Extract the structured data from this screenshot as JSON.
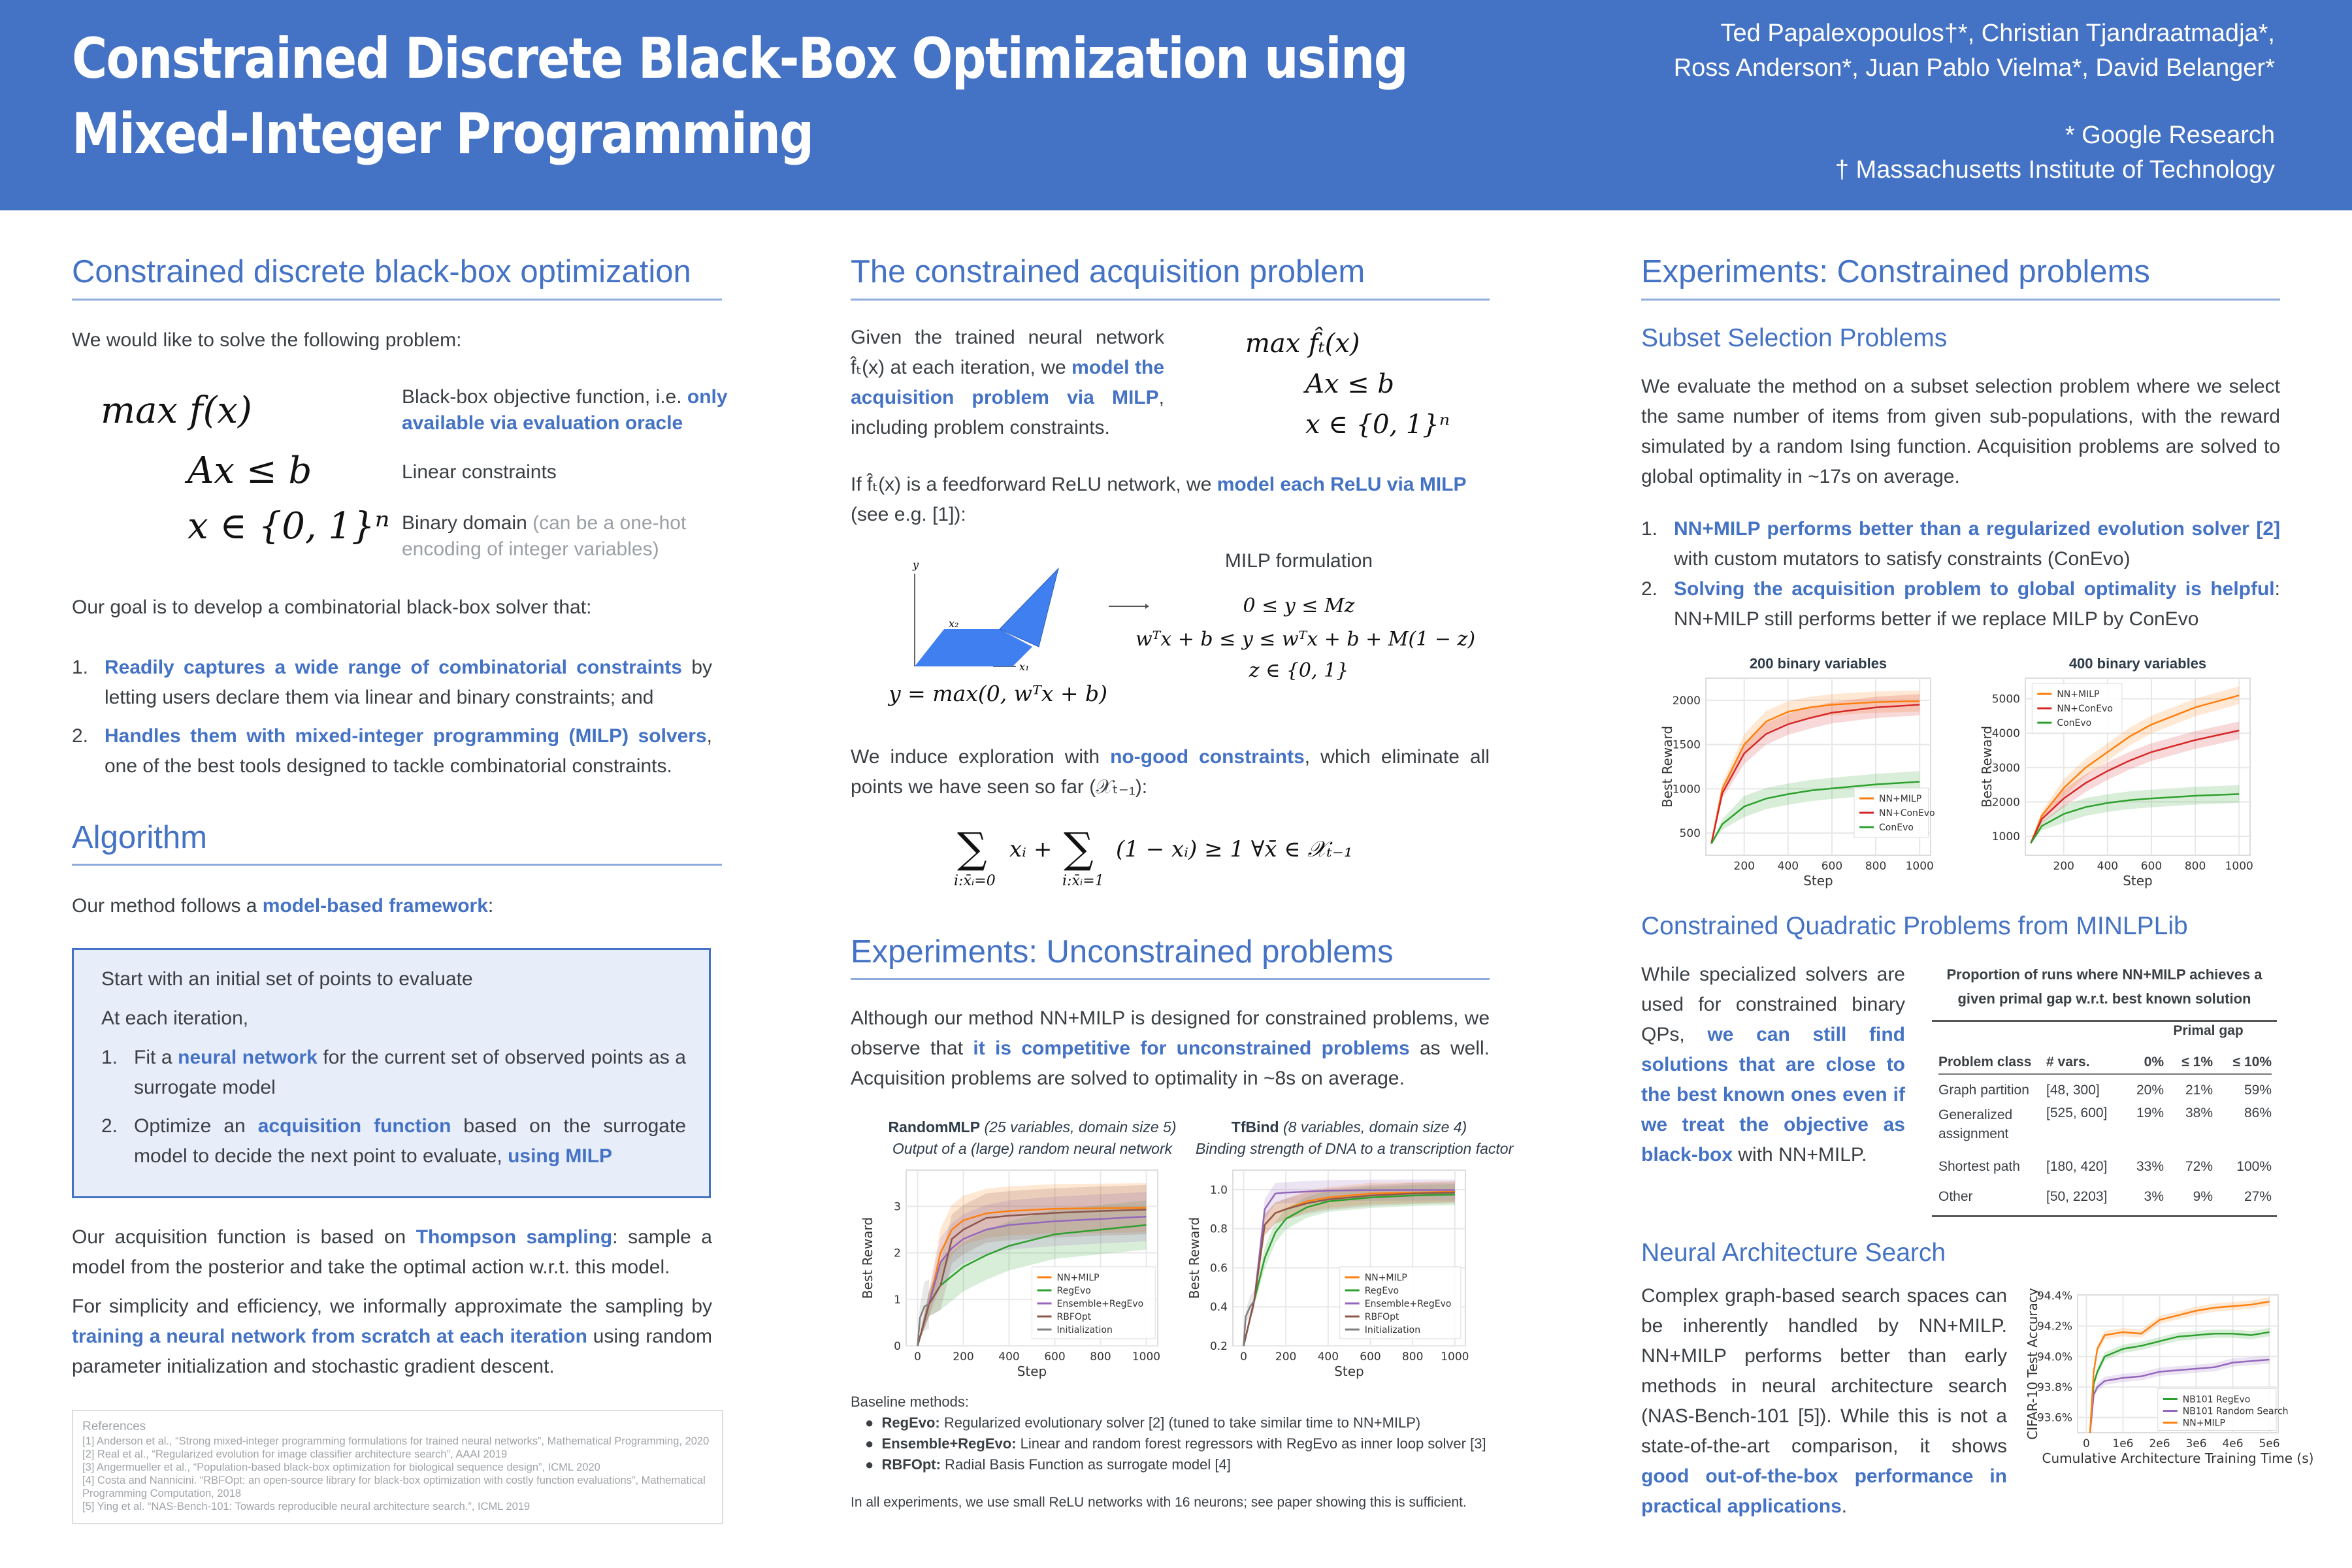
{
  "header": {
    "title_line1": "Constrained Discrete Black-Box Optimization using",
    "title_line2": "Mixed-Integer Programming",
    "authors_line1": "Ted Papalexopoulos†*, Christian Tjandraatmadja*,",
    "authors_line2": "Ross Anderson*, Juan Pablo Vielma*, David Belanger*",
    "affiliation1": "* Google Research",
    "affiliation2": "† Massachusetts Institute of Technology",
    "background_color": "#4472C4"
  },
  "col1": {
    "heading1": "Constrained discrete black-box optimization",
    "intro": "We would like to solve the following problem:",
    "problem": [
      {
        "math": "max  f(x)",
        "desc": [
          [
            "Black-box objective function, i.e. ",
            ""
          ],
          [
            "only available via evaluation oracle",
            "b"
          ]
        ]
      },
      {
        "math": "Ax ≤ b",
        "desc": [
          [
            "Linear constraints",
            ""
          ]
        ]
      },
      {
        "math": "x ∈ {0, 1}ⁿ",
        "desc": [
          [
            "Binary domain ",
            ""
          ],
          [
            "(can be a one-hot encoding of integer variables)",
            "g"
          ]
        ]
      }
    ],
    "goal": "Our goal is to develop a combinatorial black-box solver that:",
    "goals": [
      {
        "num": "1.",
        "segs": [
          [
            "Readily captures a wide range of combinatorial constraints",
            "b"
          ],
          [
            " by letting users declare them via linear and binary constraints; and",
            ""
          ]
        ]
      },
      {
        "num": "2.",
        "segs": [
          [
            "Handles them with mixed-integer programming (MILP) solvers",
            "b"
          ],
          [
            ", one of the best tools designed to tackle combinatorial constraints.",
            ""
          ]
        ]
      }
    ],
    "heading2": "Algorithm",
    "method": [
      [
        "Our method follows a ",
        ""
      ],
      [
        "model-based framework",
        "b"
      ],
      [
        ":",
        ""
      ]
    ],
    "box": {
      "start": "Start with an initial set of points to evaluate",
      "each": "At each iteration,",
      "steps": [
        {
          "num": "1.",
          "segs": [
            [
              "Fit a ",
              ""
            ],
            [
              "neural network",
              "b"
            ],
            [
              " for the current set of observed points as a surrogate model",
              ""
            ]
          ]
        },
        {
          "num": "2.",
          "segs": [
            [
              "Optimize an ",
              ""
            ],
            [
              "acquisition function",
              "b"
            ],
            [
              " based on the surrogate model to decide the next point to evaluate, ",
              ""
            ],
            [
              "using MILP",
              "b"
            ]
          ]
        }
      ]
    },
    "p_thompson": [
      [
        "Our acquisition function is based on ",
        ""
      ],
      [
        "Thompson sampling",
        "b"
      ],
      [
        ": sample a model from the posterior and take the optimal action w.r.t. this model.",
        ""
      ]
    ],
    "p_simplicity": [
      [
        "For simplicity and efficiency, we informally approximate the sampling by ",
        ""
      ],
      [
        "training a neural network from scratch at each iteration",
        "b"
      ],
      [
        " using random parameter initialization and stochastic gradient descent.",
        ""
      ]
    ],
    "references": {
      "title": "References",
      "items": [
        "[1] Anderson et al., “Strong mixed-integer programming formulations for trained neural networks”, Mathematical Programming, 2020",
        "[2] Real et al., “Regularized evolution for image classifier architecture search”, AAAI 2019",
        "[3] Angermueller et al., “Population-based black-box optimization for biological sequence design”, ICML 2020",
        "[4] Costa and Nannicini. “RBFOpt: an open-source library for black-box optimization with costly function evaluations”, Mathematical Programming Computation, 2018",
        "[5] Ying et al. “NAS-Bench-101: Towards reproducible neural architecture search.”, ICML 2019"
      ]
    }
  },
  "col2": {
    "heading1": "The constrained acquisition problem",
    "p_given": [
      [
        "Given the trained neural network f̂ₜ(x) at each iteration, we ",
        ""
      ],
      [
        "model the acquisition problem via MILP",
        "b"
      ],
      [
        ", including problem constraints.",
        ""
      ]
    ],
    "acq_math": [
      "max  f̂ₜ(x)",
      "Ax ≤ b",
      "x ∈ {0, 1}ⁿ"
    ],
    "p_relu": [
      [
        "If f̂ₜ(x) is a feedforward ReLU network, we ",
        ""
      ],
      [
        "model each ReLU via MILP",
        "b"
      ],
      [
        " (see e.g. [1]):",
        ""
      ]
    ],
    "relu_fig": {
      "y_axis": "y",
      "x2_axis": "x₂",
      "x1_axis": "x₁",
      "caption": "y = max(0, wᵀx + b)",
      "fill_color": "#3f7fef"
    },
    "milp_title": "MILP formulation",
    "milp_eqs": [
      "0 ≤ y ≤ Mz",
      "wᵀx + b ≤ y ≤ wᵀx + b + M(1 − z)",
      "z ∈ {0, 1}"
    ],
    "p_nogood": [
      [
        "We induce exploration with ",
        ""
      ],
      [
        "no-good constraints",
        "b"
      ],
      [
        ", which eliminate all points we have seen so far (𝒳ₜ₋₁):",
        ""
      ]
    ],
    "nogood": {
      "sum": "∑",
      "term1": "xᵢ +",
      "term2": "(1 − xᵢ) ≥ 1    ∀x̄ ∈ 𝒳ₜ₋₁",
      "sub1": "i:x̄ᵢ=0",
      "sub2": "i:x̄ᵢ=1"
    },
    "heading2": "Experiments: Unconstrained problems",
    "p_unconstrained": [
      [
        "Although our method NN+MILP is designed for constrained problems, we observe that ",
        ""
      ],
      [
        "it is competitive for unconstrained problems",
        "b"
      ],
      [
        " as well. Acquisition problems are solved to optimality in ~8s on average.",
        ""
      ]
    ],
    "baseline_title": "Baseline methods:",
    "baselines": [
      {
        "name": "RegEvo:",
        "desc": " Regularized evolutionary solver [2] (tuned to take similar time to NN+MILP)"
      },
      {
        "name": "Ensemble+RegEvo:",
        "desc": " Linear and random forest regressors with RegEvo as inner loop solver [3]"
      },
      {
        "name": "RBFOpt:",
        "desc": " Radial Basis Function as surrogate model [4]"
      }
    ],
    "footnote": "In all experiments, we use small ReLU networks with 16 neurons; see paper showing this is sufficient."
  },
  "col3": {
    "heading1": "Experiments: Constrained problems",
    "sub1": "Subset Selection Problems",
    "p_subset": "We evaluate the method on a subset selection problem where we select the same number of items from given sub-populations, with the reward simulated by a random Ising function. Acquisition problems are solved to global optimality in ~17s on average.",
    "findings": [
      {
        "num": "1.",
        "segs": [
          [
            "NN+MILP performs better than a regularized evolution solver [2]",
            "b"
          ],
          [
            " with custom mutators to satisfy constraints (ConEvo)",
            ""
          ]
        ]
      },
      {
        "num": "2.",
        "segs": [
          [
            "Solving the acquisition problem to global optimality is helpful",
            "b"
          ],
          [
            ": NN+MILP still performs better if we replace MILP by ConEvo",
            ""
          ]
        ]
      }
    ],
    "sub2": "Constrained Quadratic Problems from MINLPLib",
    "p_qp": [
      [
        "While specialized solvers are used for constrained binary QPs, ",
        ""
      ],
      [
        "we can still find solutions that are close to the best known ones even if we treat the objective as black-box",
        "b"
      ],
      [
        " with NN+MILP.",
        ""
      ]
    ],
    "table": {
      "title": "Proportion of runs where NN+MILP achieves a given primal gap w.r.t. best known solution",
      "group_header": "Primal gap",
      "columns": [
        "Problem class",
        "# vars.",
        "0%",
        "≤ 1%",
        "≤ 10%"
      ],
      "rows": [
        [
          "Graph partition",
          "[48, 300]",
          "20%",
          "21%",
          "59%"
        ],
        [
          "Generalized assignment",
          "[525, 600]",
          "19%",
          "38%",
          "86%"
        ],
        [
          "Shortest path",
          "[180, 420]",
          "33%",
          "72%",
          "100%"
        ],
        [
          "Other",
          "[50, 2203]",
          "3%",
          "9%",
          "27%"
        ]
      ]
    },
    "sub3": "Neural Architecture Search",
    "p_nas": [
      [
        "Complex graph-based search spaces can be inherently handled by NN+MILP. NN+MILP performs better than early methods in neural architecture search (NAS-Bench-101 [5]). While this is not a state-of-the-art comparison, it shows ",
        ""
      ],
      [
        "good out-of-the-box performance in practical applications",
        "b"
      ],
      [
        ".",
        ""
      ]
    ]
  },
  "chart_data": [
    {
      "type": "line",
      "title": "200 binary variables",
      "xlabel": "Step",
      "ylabel": "Best Reward",
      "xlim": [
        25,
        1050
      ],
      "ylim": [
        250,
        2250
      ],
      "xticks": [
        200,
        400,
        600,
        800,
        1000
      ],
      "xtick_labels": [
        "200",
        "400",
        "600",
        "800",
        "1000"
      ],
      "yticks": [
        500,
        1000,
        1500,
        2000
      ],
      "ytick_labels": [
        "500",
        "1000",
        "1500",
        "2000"
      ],
      "grid": true,
      "legend": "bottom-right",
      "x": [
        50,
        100,
        200,
        300,
        400,
        500,
        600,
        800,
        1000
      ],
      "series": [
        {
          "name": "NN+MILP",
          "color": "#ff7f0e",
          "values": [
            380,
            1000,
            1500,
            1760,
            1870,
            1920,
            1950,
            1980,
            1990
          ]
        },
        {
          "name": "NN+ConEvo",
          "color": "#d62728",
          "values": [
            380,
            950,
            1400,
            1620,
            1730,
            1800,
            1860,
            1920,
            1950
          ]
        },
        {
          "name": "ConEvo",
          "color": "#2ca02c",
          "values": [
            380,
            600,
            800,
            890,
            940,
            980,
            1005,
            1050,
            1080
          ]
        }
      ]
    },
    {
      "type": "line",
      "title": "400 binary variables",
      "xlabel": "Step",
      "ylabel": "Best Reward",
      "xlim": [
        25,
        1050
      ],
      "ylim": [
        450,
        5600
      ],
      "xticks": [
        200,
        400,
        600,
        800,
        1000
      ],
      "xtick_labels": [
        "200",
        "400",
        "600",
        "800",
        "1000"
      ],
      "yticks": [
        1000,
        2000,
        3000,
        4000,
        5000
      ],
      "ytick_labels": [
        "1000",
        "2000",
        "3000",
        "4000",
        "5000"
      ],
      "grid": true,
      "legend": "top-left",
      "x": [
        50,
        100,
        200,
        300,
        400,
        500,
        600,
        800,
        1000
      ],
      "series": [
        {
          "name": "NN+MILP",
          "color": "#ff7f0e",
          "values": [
            800,
            1600,
            2400,
            3000,
            3450,
            3900,
            4250,
            4750,
            5100
          ]
        },
        {
          "name": "NN+ConEvo",
          "color": "#d62728",
          "values": [
            800,
            1500,
            2100,
            2550,
            2900,
            3200,
            3450,
            3800,
            4080
          ]
        },
        {
          "name": "ConEvo",
          "color": "#2ca02c",
          "values": [
            800,
            1300,
            1650,
            1850,
            1970,
            2050,
            2100,
            2180,
            2230
          ]
        }
      ]
    },
    {
      "type": "line",
      "title": "RandomMLP",
      "title_note": "(25 variables, domain size 5)",
      "subtitle": "Output of a (large) random neural network",
      "xlabel": "Step",
      "ylabel": "Best Reward",
      "xlim": [
        -50,
        1050
      ],
      "ylim": [
        0,
        3.78
      ],
      "xticks": [
        0,
        200,
        400,
        600,
        800,
        1000
      ],
      "xtick_labels": [
        "0",
        "200",
        "400",
        "600",
        "800",
        "1000"
      ],
      "yticks": [
        0,
        1,
        2,
        3
      ],
      "ytick_labels": [
        "0",
        "1",
        "2",
        "3"
      ],
      "grid": true,
      "legend": "bottom-right",
      "x": [
        0,
        50,
        100,
        150,
        200,
        300,
        400,
        600,
        800,
        1000
      ],
      "series": [
        {
          "name": "NN+MILP",
          "color": "#ff7f0e",
          "values": [
            0,
            0.9,
            2.0,
            2.5,
            2.7,
            2.85,
            2.9,
            2.95,
            2.96,
            2.97
          ]
        },
        {
          "name": "RegEvo",
          "color": "#2ca02c",
          "values": [
            0,
            0.9,
            1.3,
            1.5,
            1.7,
            1.95,
            2.15,
            2.4,
            2.5,
            2.6
          ]
        },
        {
          "name": "Ensemble+RegEvo",
          "color": "#9467bd",
          "values": [
            0,
            0.9,
            1.8,
            2.1,
            2.3,
            2.5,
            2.6,
            2.68,
            2.73,
            2.78
          ]
        },
        {
          "name": "RBFOpt",
          "color": "#8c564b",
          "values": [
            0,
            0.9,
            1.3,
            2.3,
            2.5,
            2.75,
            2.8,
            2.86,
            2.9,
            2.93
          ]
        },
        {
          "name": "Initialization",
          "color": "#7f7f7f",
          "x": [
            0,
            10,
            30,
            50
          ],
          "values": [
            0,
            0.6,
            0.85,
            0.9
          ]
        }
      ]
    },
    {
      "type": "line",
      "title": "TfBind",
      "title_note": "(8 variables, domain size 4)",
      "subtitle": "Binding strength of DNA to a transcription factor",
      "xlabel": "Step",
      "ylabel": "Best Reward",
      "xlim": [
        -51,
        1050
      ],
      "ylim": [
        0.2,
        1.1
      ],
      "xticks": [
        0,
        200,
        400,
        600,
        800,
        1000
      ],
      "xtick_labels": [
        "0",
        "200",
        "400",
        "600",
        "800",
        "1000"
      ],
      "yticks": [
        0.2,
        0.4,
        0.6,
        0.8,
        1.0
      ],
      "ytick_labels": [
        "0.2",
        "0.4",
        "0.6",
        "0.8",
        "1.0"
      ],
      "grid": true,
      "legend": "bottom-right",
      "x": [
        0,
        50,
        100,
        150,
        200,
        300,
        400,
        600,
        800,
        1000
      ],
      "series": [
        {
          "name": "NN+MILP",
          "color": "#ff7f0e",
          "values": [
            0.2,
            0.43,
            0.82,
            0.88,
            0.9,
            0.94,
            0.96,
            0.98,
            0.985,
            0.99
          ]
        },
        {
          "name": "RegEvo",
          "color": "#2ca02c",
          "values": [
            0.2,
            0.43,
            0.65,
            0.78,
            0.85,
            0.91,
            0.94,
            0.96,
            0.97,
            0.975
          ]
        },
        {
          "name": "Ensemble+RegEvo",
          "color": "#9467bd",
          "values": [
            0.2,
            0.43,
            0.9,
            0.98,
            0.985,
            0.99,
            0.995,
            0.997,
            0.998,
            0.998
          ]
        },
        {
          "name": "RBFOpt",
          "color": "#8c564b",
          "values": [
            0.2,
            0.43,
            0.82,
            0.88,
            0.9,
            0.93,
            0.95,
            0.97,
            0.98,
            0.985
          ]
        },
        {
          "name": "Initialization",
          "color": "#7f7f7f",
          "x": [
            0,
            10,
            30,
            50
          ],
          "values": [
            0.2,
            0.35,
            0.4,
            0.43
          ]
        }
      ]
    },
    {
      "type": "line",
      "xlabel": "Cumulative Architecture Training Time (s)",
      "ylabel": "CIFAR-10 Test Accuracy",
      "xlim": [
        -240000,
        5240000
      ],
      "ylim": [
        93.5,
        94.404
      ],
      "xticks": [
        0,
        1000000,
        2000000,
        3000000,
        4000000,
        5000000
      ],
      "xtick_labels": [
        "0",
        "1e6",
        "2e6",
        "3e6",
        "4e6",
        "5e6"
      ],
      "yticks": [
        93.6,
        93.8,
        94.0,
        94.2,
        94.4
      ],
      "ytick_labels": [
        "93.6%",
        "93.8%",
        "94.0%",
        "94.2%",
        "94.4%"
      ],
      "grid": true,
      "legend": "bottom-right",
      "x": [
        100000,
        200000,
        300000,
        500000,
        1000000,
        1500000,
        2000000,
        2500000,
        3000000,
        3500000,
        4000000,
        4500000,
        5000000
      ],
      "series": [
        {
          "name": "NB101 RegEvo",
          "color": "#2ca02c",
          "values": [
            93.5,
            93.82,
            93.9,
            94.0,
            94.05,
            94.07,
            94.1,
            94.13,
            94.14,
            94.15,
            94.15,
            94.14,
            94.16
          ]
        },
        {
          "name": "NB101 Random Search",
          "color": "#9467bd",
          "values": [
            93.5,
            93.75,
            93.8,
            93.84,
            93.86,
            93.87,
            93.9,
            93.91,
            93.92,
            93.93,
            93.96,
            93.97,
            93.98
          ]
        },
        {
          "name": "NN+MILP",
          "color": "#ff7f0e",
          "values": [
            93.5,
            93.9,
            94.05,
            94.14,
            94.16,
            94.15,
            94.24,
            94.27,
            94.3,
            94.32,
            94.33,
            94.34,
            94.36
          ]
        }
      ]
    }
  ]
}
